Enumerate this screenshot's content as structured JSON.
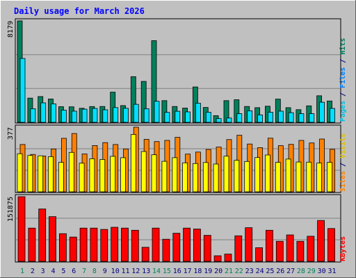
{
  "title": "Daily usage for March 2026",
  "colors": {
    "background": "#c0c0c0",
    "title": "#0000ff",
    "hits": "#00805c",
    "files": "#00e0ff",
    "pages": "#00c0e0",
    "visits": "#ffff00",
    "sites": "#ff8000",
    "kbytes": "#ff0000",
    "weekend": "#00805c",
    "weekday": "#000080"
  },
  "chart_data": [
    {
      "type": "bar",
      "panel": "hits-files-pages",
      "ylabel_top": "8179",
      "ylim": [
        0,
        8179
      ],
      "legend": {
        "pages": "Pages",
        "files": "Files",
        "hits": "Hits",
        "sep": " / "
      },
      "categories": [
        "1",
        "2",
        "3",
        "4",
        "5",
        "6",
        "7",
        "8",
        "9",
        "10",
        "11",
        "12",
        "13",
        "14",
        "15",
        "16",
        "17",
        "18",
        "19",
        "20",
        "21",
        "22",
        "23",
        "24",
        "25",
        "26",
        "27",
        "28",
        "29",
        "30",
        "31"
      ],
      "series": [
        {
          "name": "Hits",
          "values": [
            8179,
            1950,
            2080,
            1880,
            1260,
            1250,
            1130,
            1270,
            1280,
            2430,
            1350,
            3680,
            3300,
            6580,
            1750,
            1280,
            1150,
            2850,
            1200,
            540,
            1750,
            1820,
            1280,
            1180,
            1300,
            1870,
            1180,
            1020,
            1330,
            2140,
            1720
          ]
        },
        {
          "name": "Files",
          "values": [
            5150,
            1100,
            1570,
            1490,
            980,
            900,
            1060,
            1120,
            1010,
            1190,
            1130,
            1450,
            1100,
            1700,
            800,
            890,
            840,
            1540,
            820,
            300,
            350,
            700,
            930,
            600,
            820,
            900,
            780,
            700,
            700,
            1620,
            1120
          ]
        }
      ]
    },
    {
      "type": "bar",
      "panel": "visits-sites",
      "ylabel_top": "377",
      "ylim": [
        0,
        377
      ],
      "legend": {
        "sites": "Sites",
        "visits": "Visits",
        "sep": " / "
      },
      "categories": [
        "1",
        "2",
        "3",
        "4",
        "5",
        "6",
        "7",
        "8",
        "9",
        "10",
        "11",
        "12",
        "13",
        "14",
        "15",
        "16",
        "17",
        "18",
        "19",
        "20",
        "21",
        "22",
        "23",
        "24",
        "25",
        "26",
        "27",
        "28",
        "29",
        "30",
        "31"
      ],
      "series": [
        {
          "name": "Visits",
          "values": [
            222,
            212,
            210,
            205,
            172,
            230,
            167,
            193,
            189,
            207,
            199,
            335,
            235,
            216,
            178,
            199,
            169,
            165,
            171,
            162,
            208,
            184,
            177,
            200,
            215,
            172,
            191,
            174,
            173,
            168,
            172
          ]
        },
        {
          "name": "Sites",
          "values": [
            276,
            218,
            209,
            250,
            312,
            340,
            221,
            270,
            287,
            276,
            250,
            377,
            306,
            293,
            300,
            318,
            220,
            232,
            247,
            261,
            305,
            330,
            279,
            258,
            313,
            269,
            277,
            300,
            285,
            308,
            248
          ]
        }
      ]
    },
    {
      "type": "bar",
      "panel": "kbytes",
      "ylabel_top": "151875",
      "ylim": [
        0,
        151875
      ],
      "legend": {
        "kbytes": "KBytes"
      },
      "categories": [
        "1",
        "2",
        "3",
        "4",
        "5",
        "6",
        "7",
        "8",
        "9",
        "10",
        "11",
        "12",
        "13",
        "14",
        "15",
        "16",
        "17",
        "18",
        "19",
        "20",
        "21",
        "22",
        "23",
        "24",
        "25",
        "26",
        "27",
        "28",
        "29",
        "30",
        "31"
      ],
      "series": [
        {
          "name": "KBytes",
          "values": [
            151875,
            78000,
            123000,
            105000,
            65000,
            57000,
            78000,
            78000,
            75000,
            80000,
            78000,
            73000,
            33000,
            78000,
            52000,
            66000,
            78000,
            76000,
            61000,
            13000,
            17000,
            60000,
            79000,
            32000,
            73000,
            47000,
            62000,
            47000,
            59000,
            96000,
            77000
          ]
        }
      ]
    }
  ],
  "x_axis": {
    "labels": [
      "1",
      "2",
      "3",
      "4",
      "5",
      "6",
      "7",
      "8",
      "9",
      "10",
      "11",
      "12",
      "13",
      "14",
      "15",
      "16",
      "17",
      "18",
      "19",
      "20",
      "21",
      "22",
      "23",
      "24",
      "25",
      "26",
      "27",
      "28",
      "29",
      "30",
      "31"
    ],
    "weekend": [
      true,
      false,
      false,
      false,
      false,
      false,
      true,
      true,
      false,
      false,
      false,
      false,
      false,
      true,
      true,
      false,
      false,
      false,
      false,
      false,
      true,
      true,
      false,
      false,
      false,
      false,
      false,
      true,
      true,
      false,
      false
    ]
  }
}
